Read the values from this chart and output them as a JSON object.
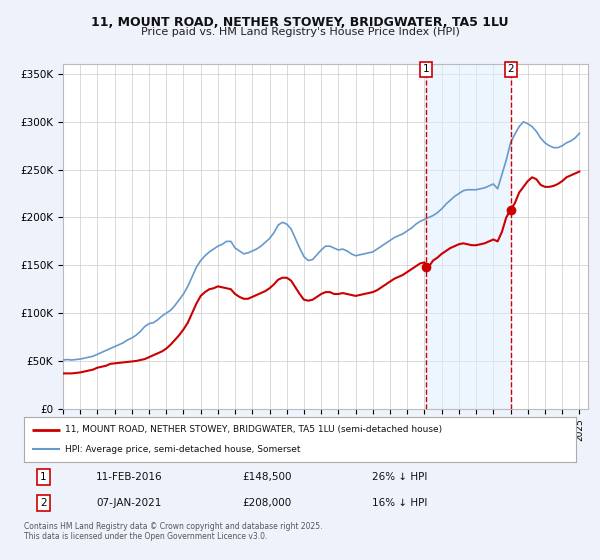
{
  "title": "11, MOUNT ROAD, NETHER STOWEY, BRIDGWATER, TA5 1LU",
  "subtitle": "Price paid vs. HM Land Registry's House Price Index (HPI)",
  "bg_color": "#eef2fb",
  "plot_bg_color": "#ffffff",
  "grid_color": "#cccccc",
  "red_line_color": "#cc0000",
  "blue_line_color": "#6699cc",
  "blue_fill_color": "#ddeeff",
  "vline_color": "#cc0000",
  "ylim": [
    0,
    360000
  ],
  "yticks": [
    0,
    50000,
    100000,
    150000,
    200000,
    250000,
    300000,
    350000
  ],
  "ytick_labels": [
    "£0",
    "£50K",
    "£100K",
    "£150K",
    "£200K",
    "£250K",
    "£300K",
    "£350K"
  ],
  "xlim_start": 1995.0,
  "xlim_end": 2025.5,
  "sale1_x": 2016.11,
  "sale1_y": 148500,
  "sale2_x": 2021.03,
  "sale2_y": 208000,
  "shade_start": 2016.11,
  "shade_end": 2021.03,
  "legend_label_red": "11, MOUNT ROAD, NETHER STOWEY, BRIDGWATER, TA5 1LU (semi-detached house)",
  "legend_label_blue": "HPI: Average price, semi-detached house, Somerset",
  "annot1_num": "1",
  "annot1_date": "11-FEB-2016",
  "annot1_price": "£148,500",
  "annot1_hpi": "26% ↓ HPI",
  "annot2_num": "2",
  "annot2_date": "07-JAN-2021",
  "annot2_price": "£208,000",
  "annot2_hpi": "16% ↓ HPI",
  "footer": "Contains HM Land Registry data © Crown copyright and database right 2025.\nThis data is licensed under the Open Government Licence v3.0.",
  "hpi_x": [
    1995.0,
    1995.25,
    1995.5,
    1995.75,
    1996.0,
    1996.25,
    1996.5,
    1996.75,
    1997.0,
    1997.25,
    1997.5,
    1997.75,
    1998.0,
    1998.25,
    1998.5,
    1998.75,
    1999.0,
    1999.25,
    1999.5,
    1999.75,
    2000.0,
    2000.25,
    2000.5,
    2000.75,
    2001.0,
    2001.25,
    2001.5,
    2001.75,
    2002.0,
    2002.25,
    2002.5,
    2002.75,
    2003.0,
    2003.25,
    2003.5,
    2003.75,
    2004.0,
    2004.25,
    2004.5,
    2004.75,
    2005.0,
    2005.25,
    2005.5,
    2005.75,
    2006.0,
    2006.25,
    2006.5,
    2006.75,
    2007.0,
    2007.25,
    2007.5,
    2007.75,
    2008.0,
    2008.25,
    2008.5,
    2008.75,
    2009.0,
    2009.25,
    2009.5,
    2009.75,
    2010.0,
    2010.25,
    2010.5,
    2010.75,
    2011.0,
    2011.25,
    2011.5,
    2011.75,
    2012.0,
    2012.25,
    2012.5,
    2012.75,
    2013.0,
    2013.25,
    2013.5,
    2013.75,
    2014.0,
    2014.25,
    2014.5,
    2014.75,
    2015.0,
    2015.25,
    2015.5,
    2015.75,
    2016.0,
    2016.25,
    2016.5,
    2016.75,
    2017.0,
    2017.25,
    2017.5,
    2017.75,
    2018.0,
    2018.25,
    2018.5,
    2018.75,
    2019.0,
    2019.25,
    2019.5,
    2019.75,
    2020.0,
    2020.25,
    2020.5,
    2020.75,
    2021.0,
    2021.25,
    2021.5,
    2021.75,
    2022.0,
    2022.25,
    2022.5,
    2022.75,
    2023.0,
    2023.25,
    2023.5,
    2023.75,
    2024.0,
    2024.25,
    2024.5,
    2024.75,
    2025.0
  ],
  "hpi_y": [
    51000,
    51500,
    51000,
    51500,
    52000,
    53000,
    54000,
    55000,
    57000,
    59000,
    61000,
    63000,
    65000,
    67000,
    69000,
    72000,
    74000,
    77000,
    81000,
    86000,
    89000,
    90000,
    93000,
    97000,
    100000,
    103000,
    108000,
    114000,
    120000,
    128000,
    138000,
    148000,
    155000,
    160000,
    164000,
    167000,
    170000,
    172000,
    175000,
    175000,
    168000,
    165000,
    162000,
    163000,
    165000,
    167000,
    170000,
    174000,
    178000,
    184000,
    192000,
    195000,
    193000,
    188000,
    178000,
    168000,
    159000,
    155000,
    156000,
    161000,
    166000,
    170000,
    170000,
    168000,
    166000,
    167000,
    165000,
    162000,
    160000,
    161000,
    162000,
    163000,
    164000,
    167000,
    170000,
    173000,
    176000,
    179000,
    181000,
    183000,
    186000,
    189000,
    193000,
    196000,
    198000,
    200000,
    202000,
    205000,
    209000,
    214000,
    218000,
    222000,
    225000,
    228000,
    229000,
    229000,
    229000,
    230000,
    231000,
    233000,
    235000,
    230000,
    245000,
    260000,
    278000,
    287000,
    295000,
    300000,
    298000,
    295000,
    290000,
    283000,
    278000,
    275000,
    273000,
    273000,
    275000,
    278000,
    280000,
    283000,
    288000
  ],
  "price_x": [
    1995.0,
    1995.25,
    1995.5,
    1995.75,
    1996.0,
    1996.25,
    1996.5,
    1996.75,
    1997.0,
    1997.25,
    1997.5,
    1997.75,
    1998.0,
    1998.25,
    1998.5,
    1998.75,
    1999.0,
    1999.25,
    1999.5,
    1999.75,
    2000.0,
    2000.25,
    2000.5,
    2000.75,
    2001.0,
    2001.25,
    2001.5,
    2001.75,
    2002.0,
    2002.25,
    2002.5,
    2002.75,
    2003.0,
    2003.25,
    2003.5,
    2003.75,
    2004.0,
    2004.25,
    2004.5,
    2004.75,
    2005.0,
    2005.25,
    2005.5,
    2005.75,
    2006.0,
    2006.25,
    2006.5,
    2006.75,
    2007.0,
    2007.25,
    2007.5,
    2007.75,
    2008.0,
    2008.25,
    2008.5,
    2008.75,
    2009.0,
    2009.25,
    2009.5,
    2009.75,
    2010.0,
    2010.25,
    2010.5,
    2010.75,
    2011.0,
    2011.25,
    2011.5,
    2011.75,
    2012.0,
    2012.25,
    2012.5,
    2012.75,
    2013.0,
    2013.25,
    2013.5,
    2013.75,
    2014.0,
    2014.25,
    2014.5,
    2014.75,
    2015.0,
    2015.25,
    2015.5,
    2015.75,
    2016.0,
    2016.25,
    2016.5,
    2016.75,
    2017.0,
    2017.25,
    2017.5,
    2017.75,
    2018.0,
    2018.25,
    2018.5,
    2018.75,
    2019.0,
    2019.25,
    2019.5,
    2019.75,
    2020.0,
    2020.25,
    2020.5,
    2020.75,
    2021.0,
    2021.25,
    2021.5,
    2021.75,
    2022.0,
    2022.25,
    2022.5,
    2022.75,
    2023.0,
    2023.25,
    2023.5,
    2023.75,
    2024.0,
    2024.25,
    2024.5,
    2024.75,
    2025.0
  ],
  "price_y": [
    37000,
    37000,
    37000,
    37500,
    38000,
    39000,
    40000,
    41000,
    43000,
    44000,
    45000,
    47000,
    47500,
    48000,
    48500,
    49000,
    49500,
    50000,
    51000,
    52000,
    54000,
    56000,
    58000,
    60000,
    63000,
    67000,
    72000,
    77000,
    83000,
    90000,
    100000,
    110000,
    118000,
    122000,
    125000,
    126000,
    128000,
    127000,
    126000,
    125000,
    120000,
    117000,
    115000,
    115000,
    117000,
    119000,
    121000,
    123000,
    126000,
    130000,
    135000,
    137000,
    137000,
    134000,
    127000,
    120000,
    114000,
    113000,
    114000,
    117000,
    120000,
    122000,
    122000,
    120000,
    120000,
    121000,
    120000,
    119000,
    118000,
    119000,
    120000,
    121000,
    122000,
    124000,
    127000,
    130000,
    133000,
    136000,
    138000,
    140000,
    143000,
    146000,
    149000,
    152000,
    153000,
    148500,
    155000,
    158000,
    162000,
    165000,
    168000,
    170000,
    172000,
    173000,
    172000,
    171000,
    171000,
    172000,
    173000,
    175000,
    177000,
    175000,
    185000,
    200000,
    208000,
    215000,
    226000,
    232000,
    238000,
    242000,
    240000,
    234000,
    232000,
    232000,
    233000,
    235000,
    238000,
    242000,
    244000,
    246000,
    248000
  ]
}
